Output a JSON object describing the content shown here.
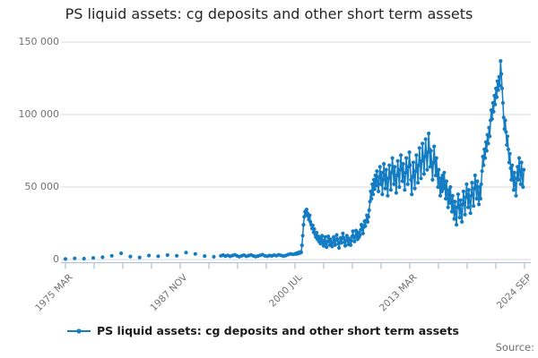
{
  "footer": {
    "source_label": "Source:"
  },
  "colors": {
    "background": "#ffffff",
    "series_blue": "#147cc2",
    "grid": "#d9d9d9",
    "axis": "#b3c2d4",
    "tick_label": "#707070",
    "title": "#262626",
    "legend_text": "#1a1a1a"
  },
  "chart_data": {
    "type": "line",
    "title": "PS liquid assets: cg deposits and other short term assets",
    "xlabel": "",
    "ylabel": "",
    "grid": "horizontal",
    "legend_position": "bottom",
    "y_axis": {
      "lim": [
        0,
        150000
      ],
      "ticks": [
        {
          "value": 0,
          "label": "0"
        },
        {
          "value": 50000,
          "label": "50 000"
        },
        {
          "value": 100000,
          "label": "100 000"
        },
        {
          "value": 150000,
          "label": "150 000"
        }
      ]
    },
    "x_axis": {
      "lim": [
        1975.25,
        2024.75
      ],
      "minor_tick_count": 17,
      "labeled_every": 4,
      "tick_labels": [
        "1975 MAR",
        "1987 NOV",
        "2000 JUL",
        "2013 MAR",
        "2024 SEP"
      ]
    },
    "series": [
      {
        "name": "PS liquid assets: cg deposits and other short term assets",
        "color": "#147cc2",
        "marker": "circle",
        "segments": [
          {
            "start": 1975.25,
            "step": 1,
            "frequency": "annual",
            "values": [
              400,
              800,
              600,
              1100,
              1600,
              2600,
              4300,
              2100,
              1500,
              2800,
              2300,
              3100,
              2600,
              4800,
              3900,
              2400,
              1900
            ]
          },
          {
            "start": 1992.0,
            "step": 0.25,
            "frequency": "quarterly",
            "values": [
              2600,
              3100,
              2400,
              2900,
              2200,
              2800,
              3300,
              2500,
              2000,
              2600,
              3000,
              2300,
              2700,
              3200,
              2500,
              2100,
              2400,
              2900,
              3400,
              2600,
              2300,
              2800,
              2500,
              3000,
              2700,
              3300,
              2900,
              2400,
              2800,
              3400,
              3900,
              3600
            ]
          },
          {
            "start": 2000.0,
            "step": 0.0833333,
            "frequency": "monthly",
            "values": [
              3800,
              4200,
              3900,
              4500,
              4100,
              4800,
              5200,
              4600,
              5000,
              9800,
              16500,
              24000,
              29500,
              33000,
              31000,
              34500,
              32000,
              29800,
              27500,
              30500,
              26000,
              24000,
              21500,
              23500,
              19000,
              21000,
              17500,
              15500,
              18500,
              14000,
              16000,
              12500,
              15000,
              11000,
              13500,
              16500,
              12000,
              9500,
              13000,
              15500,
              11000,
              8500,
              12500,
              16000,
              13000,
              10000,
              14000,
              11500,
              9000,
              12000,
              15500,
              12500,
              10000,
              13500,
              17000,
              14000,
              11000,
              8000,
              12000,
              15000,
              11500,
              14500,
              18000,
              15000,
              12000,
              9500,
              13000,
              16500,
              13500,
              10500,
              14500,
              12000,
              10000,
              13000,
              16000,
              19500,
              15500,
              12500,
              16000,
              20000,
              17000,
              14000,
              18500,
              15500,
              17000,
              20500,
              24000,
              21000,
              18000,
              22500,
              26500,
              23000,
              27000,
              30500,
              26000,
              29500,
              34000,
              40000,
              47000,
              42000,
              52000,
              45000,
              55000,
              48500,
              58000,
              51000,
              61000,
              54000,
              47000,
              57000,
              64000,
              52000,
              60000,
              45000,
              55000,
              66000,
              58000,
              49000,
              62000,
              53000,
              44000,
              56000,
              65000,
              57000,
              48000,
              60000,
              70000,
              61000,
              52000,
              64000,
              55000,
              46000,
              58000,
              68000,
              59000,
              50000,
              62000,
              72000,
              63000,
              54000,
              66000,
              57000,
              48000,
              60000,
              70000,
              61000,
              52000,
              64000,
              74000,
              65000,
              55000,
              45000,
              57000,
              67000,
              58000,
              49000,
              61000,
              72000,
              63000,
              53000,
              65000,
              77000,
              67000,
              56000,
              68000,
              80000,
              70000,
              59000,
              71000,
              83000,
              73000,
              62000,
              74000,
              87000,
              76000,
              64000,
              75000,
              65000,
              55000,
              67000,
              78000,
              68000,
              58000,
              70000,
              60000,
              50000,
              62000,
              53000,
              44000,
              56000,
              47000,
              58000,
              49000,
              60000,
              51000,
              42000,
              54000,
              45000,
              36000,
              48000,
              39000,
              50000,
              41000,
              33000,
              44000,
              36000,
              28000,
              40000,
              32000,
              24000,
              36000,
              45000,
              37000,
              29000,
              41000,
              33000,
              26000,
              38000,
              47000,
              39000,
              31000,
              43000,
              52000,
              44000,
              36000,
              48000,
              40000,
              32000,
              44000,
              53000,
              45000,
              37000,
              49000,
              58000,
              50000,
              42000,
              54000,
              46000,
              38000,
              50000,
              42000,
              52000,
              61000,
              71000,
              65000,
              76000,
              70000,
              81000,
              75000,
              86000,
              80000,
              91000,
              85000,
              96000,
              103000,
              97000,
              108000,
              102000,
              113000,
              107000,
              118000,
              112000,
              123000,
              117000,
              126000,
              120000,
              137000,
              128000,
              118000,
              108000,
              98000,
              90000,
              96000,
              88000,
              79000,
              85000,
              76000,
              67000,
              73000,
              63000,
              55000,
              65000,
              57000,
              48000,
              60000,
              52000,
              44000,
              56000,
              64000,
              55000,
              70000,
              61000,
              52000,
              67000,
              58000,
              50000,
              62000
            ]
          }
        ]
      }
    ]
  }
}
